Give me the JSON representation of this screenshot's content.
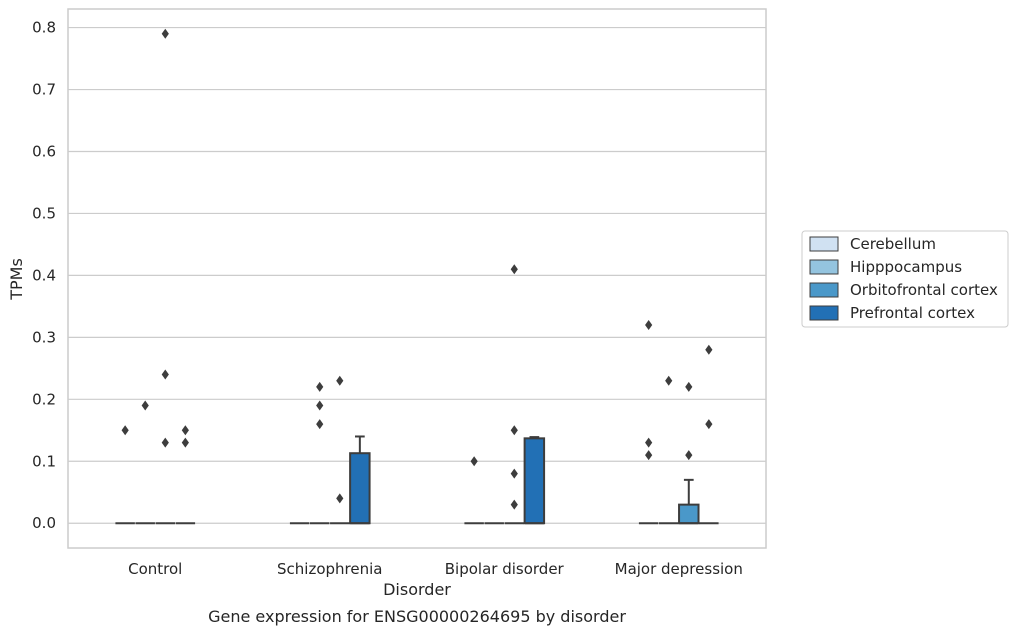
{
  "caption": "Gene expression for ENSG00000264695 by disorder",
  "chart_data": {
    "type": "box",
    "title": "",
    "xlabel": "Disorder",
    "ylabel": "TPMs",
    "ylim": [
      -0.04,
      0.83
    ],
    "yticks": [
      0.0,
      0.1,
      0.2,
      0.3,
      0.4,
      0.5,
      0.6,
      0.7,
      0.8
    ],
    "ytick_labels": [
      "0.0",
      "0.1",
      "0.2",
      "0.3",
      "0.4",
      "0.5",
      "0.6",
      "0.7",
      "0.8"
    ],
    "grid": "horizontal",
    "legend_position": "right",
    "categories": [
      "Control",
      "Schizophrenia",
      "Bipolar disorder",
      "Major depression"
    ],
    "series": [
      {
        "name": "Cerebellum",
        "color": "#d0e1f2",
        "boxes": [
          {
            "q1": 0,
            "median": 0,
            "q3": 0,
            "whisker_low": 0,
            "whisker_high": 0,
            "outliers": [
              0.15
            ]
          },
          {
            "q1": 0,
            "median": 0,
            "q3": 0,
            "whisker_low": 0,
            "whisker_high": 0,
            "outliers": []
          },
          {
            "q1": 0,
            "median": 0,
            "q3": 0,
            "whisker_low": 0,
            "whisker_high": 0,
            "outliers": [
              0.1
            ]
          },
          {
            "q1": 0,
            "median": 0,
            "q3": 0,
            "whisker_low": 0,
            "whisker_high": 0,
            "outliers": [
              0.32,
              0.13,
              0.11
            ]
          }
        ]
      },
      {
        "name": "Hipppocampus",
        "color": "#94c4df",
        "boxes": [
          {
            "q1": 0,
            "median": 0,
            "q3": 0,
            "whisker_low": 0,
            "whisker_high": 0,
            "outliers": [
              0.19
            ]
          },
          {
            "q1": 0,
            "median": 0,
            "q3": 0,
            "whisker_low": 0,
            "whisker_high": 0,
            "outliers": [
              0.22,
              0.19,
              0.16
            ]
          },
          {
            "q1": 0,
            "median": 0,
            "q3": 0,
            "whisker_low": 0,
            "whisker_high": 0,
            "outliers": []
          },
          {
            "q1": 0,
            "median": 0,
            "q3": 0,
            "whisker_low": 0,
            "whisker_high": 0,
            "outliers": [
              0.23
            ]
          }
        ]
      },
      {
        "name": "Orbitofrontal cortex",
        "color": "#4a98c9",
        "boxes": [
          {
            "q1": 0,
            "median": 0,
            "q3": 0,
            "whisker_low": 0,
            "whisker_high": 0,
            "outliers": [
              0.79,
              0.24,
              0.13
            ]
          },
          {
            "q1": 0,
            "median": 0,
            "q3": 0,
            "whisker_low": 0,
            "whisker_high": 0,
            "outliers": [
              0.23,
              0.04
            ]
          },
          {
            "q1": 0,
            "median": 0,
            "q3": 0,
            "whisker_low": 0,
            "whisker_high": 0,
            "outliers": [
              0.41,
              0.15,
              0.08,
              0.03
            ]
          },
          {
            "q1": 0,
            "median": 0,
            "q3": 0.03,
            "whisker_low": 0,
            "whisker_high": 0.07,
            "outliers": [
              0.22,
              0.11
            ]
          }
        ]
      },
      {
        "name": "Prefrontal cortex",
        "color": "#2270b5",
        "boxes": [
          {
            "q1": 0,
            "median": 0,
            "q3": 0,
            "whisker_low": 0,
            "whisker_high": 0,
            "outliers": [
              0.15,
              0.13
            ]
          },
          {
            "q1": 0,
            "median": 0,
            "q3": 0.113,
            "whisker_low": 0,
            "whisker_high": 0.14,
            "outliers": []
          },
          {
            "q1": 0,
            "median": 0,
            "q3": 0.137,
            "whisker_low": 0,
            "whisker_high": 0.139,
            "outliers": []
          },
          {
            "q1": 0,
            "median": 0,
            "q3": 0,
            "whisker_low": 0,
            "whisker_high": 0,
            "outliers": [
              0.28,
              0.16
            ]
          }
        ]
      }
    ]
  }
}
